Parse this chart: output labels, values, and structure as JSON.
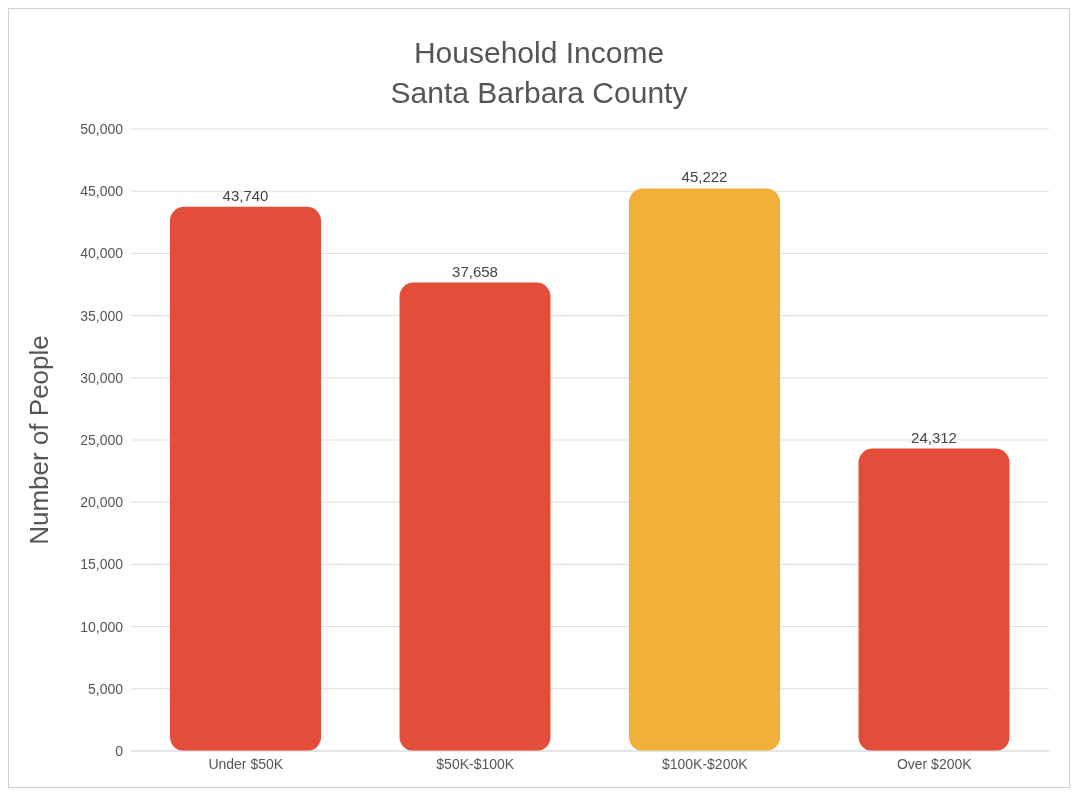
{
  "chart_data": {
    "type": "bar",
    "title": "Household Income",
    "subtitle": "Santa Barbara County",
    "ylabel": "Number of People",
    "categories": [
      "Under $50K",
      "$50K-$100K",
      "$100K-$200K",
      "Over $200K"
    ],
    "values": [
      43740,
      37658,
      45222,
      24312
    ],
    "value_labels": [
      "43,740",
      "37,658",
      "45,222",
      "24,312"
    ],
    "colors": [
      "#e44d3a",
      "#e44d3a",
      "#f0b03a",
      "#e44d3a"
    ],
    "ylim": [
      0,
      50000
    ],
    "yticks": [
      0,
      {
        "value": 5000,
        "label": "5,000"
      },
      {
        "value": 10000,
        "label": "10,000"
      },
      {
        "value": 15000,
        "label": "15,000"
      },
      {
        "value": 20000,
        "label": "20,000"
      },
      {
        "value": 25000,
        "label": "25,000"
      },
      {
        "value": 30000,
        "label": "30,000"
      },
      {
        "value": 35000,
        "label": "35,000"
      },
      {
        "value": 40000,
        "label": "40,000"
      },
      {
        "value": 45000,
        "label": "45,000"
      },
      {
        "value": 50000,
        "label": "50,000"
      }
    ],
    "grid": "y"
  }
}
